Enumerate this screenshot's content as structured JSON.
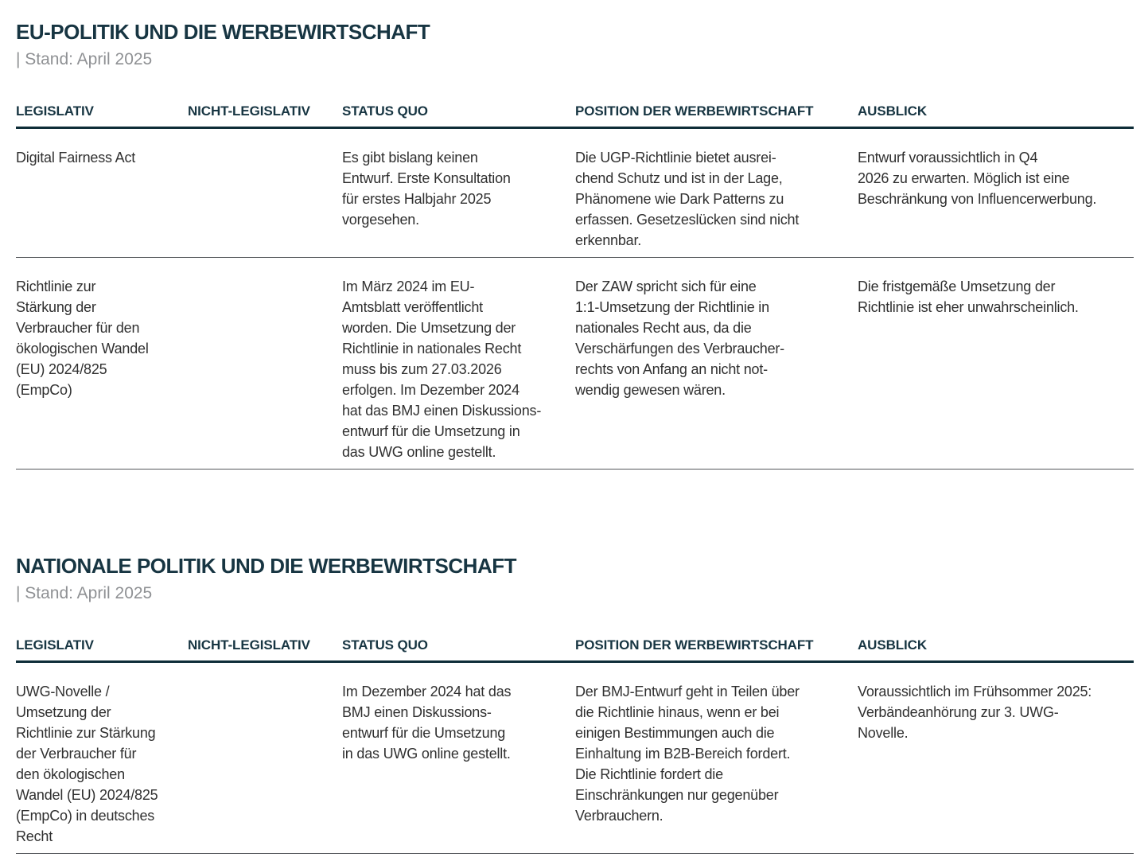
{
  "colors": {
    "heading": "#173542",
    "rule": "#0e2d38",
    "body_text": "#303030",
    "muted": "#8f9194",
    "separator": "#54575b",
    "page_bg": "#ffffff"
  },
  "sections": [
    {
      "title": "EU-POLITIK UND DIE WERBEWIRTSCHAFT",
      "status_line": "| Stand: April 2025",
      "columns": {
        "legislativ": "LEGISLATIV",
        "nicht_legislativ": "NICHT-LEGISLATIV",
        "status_quo": "STATUS QUO",
        "position": "POSITION DER WERBEWIRTSCHAFT",
        "ausblick": "AUSBLICK"
      },
      "rows": [
        {
          "cells": {
            "legislativ": "Digital Fairness Act",
            "nicht_legislativ": "",
            "status_quo": "Es gibt bislang keinen\nEntwurf. Erste Konsultation\nfür erstes Halbjahr 2025\nvorgesehen.",
            "position": "Die UGP-Richtlinie bietet ausrei-\nchend Schutz und ist in der Lage,\nPhänomene wie Dark Patterns zu\nerfassen. Gesetzeslücken sind nicht\nerkennbar.",
            "ausblick": "Entwurf voraussichtlich in Q4\n2026 zu erwarten. Möglich ist eine\nBeschränkung von Influencerwerbung."
          }
        },
        {
          "cells": {
            "legislativ": "Richtlinie zur\nStärkung der\nVerbraucher für den\nökologischen Wandel\n(EU) 2024/825\n(EmpCo)",
            "nicht_legislativ": "",
            "status_quo": "Im März 2024 im EU-\nAmtsblatt veröffentlicht\nworden. Die Umsetzung der\nRichtlinie in nationales Recht\nmuss bis zum 27.03.2026\nerfolgen. Im Dezember 2024\nhat das BMJ einen Diskussions-\nentwurf für die Umsetzung in\ndas UWG online gestellt.",
            "position": "Der ZAW spricht sich für eine\n1:1-Umsetzung der Richtlinie in\nnationales Recht aus, da die\nVerschärfungen des Verbraucher-\nrechts von Anfang an nicht not-\nwendig gewesen wären.",
            "ausblick": "Die fristgemäße Umsetzung der\nRichtlinie ist eher unwahrscheinlich."
          }
        }
      ]
    },
    {
      "title": "NATIONALE POLITIK UND DIE WERBEWIRTSCHAFT",
      "status_line": "| Stand: April 2025",
      "columns": {
        "legislativ": "LEGISLATIV",
        "nicht_legislativ": "NICHT-LEGISLATIV",
        "status_quo": "STATUS QUO",
        "position": "POSITION DER WERBEWIRTSCHAFT",
        "ausblick": "AUSBLICK"
      },
      "rows": [
        {
          "cells": {
            "legislativ": "UWG-Novelle /\nUmsetzung der\nRichtlinie zur Stärkung\nder Verbraucher für\nden ökologischen\nWandel (EU) 2024/825\n(EmpCo) in deutsches\nRecht",
            "nicht_legislativ": "",
            "status_quo": "Im Dezember 2024 hat das\nBMJ einen Diskussions-\nentwurf für die Umsetzung\nin das UWG online gestellt.",
            "position": "Der BMJ-Entwurf geht in Teilen über\ndie Richtlinie hinaus, wenn er bei\neinigen Bestimmungen auch die\nEinhaltung im B2B-Bereich fordert.\nDie Richtlinie fordert die\nEinschränkungen nur gegenüber\nVerbrauchern.",
            "ausblick": "Voraussichtlich im Frühsommer 2025:\nVerbändeanhörung zur 3. UWG-\nNovelle."
          }
        }
      ]
    }
  ]
}
